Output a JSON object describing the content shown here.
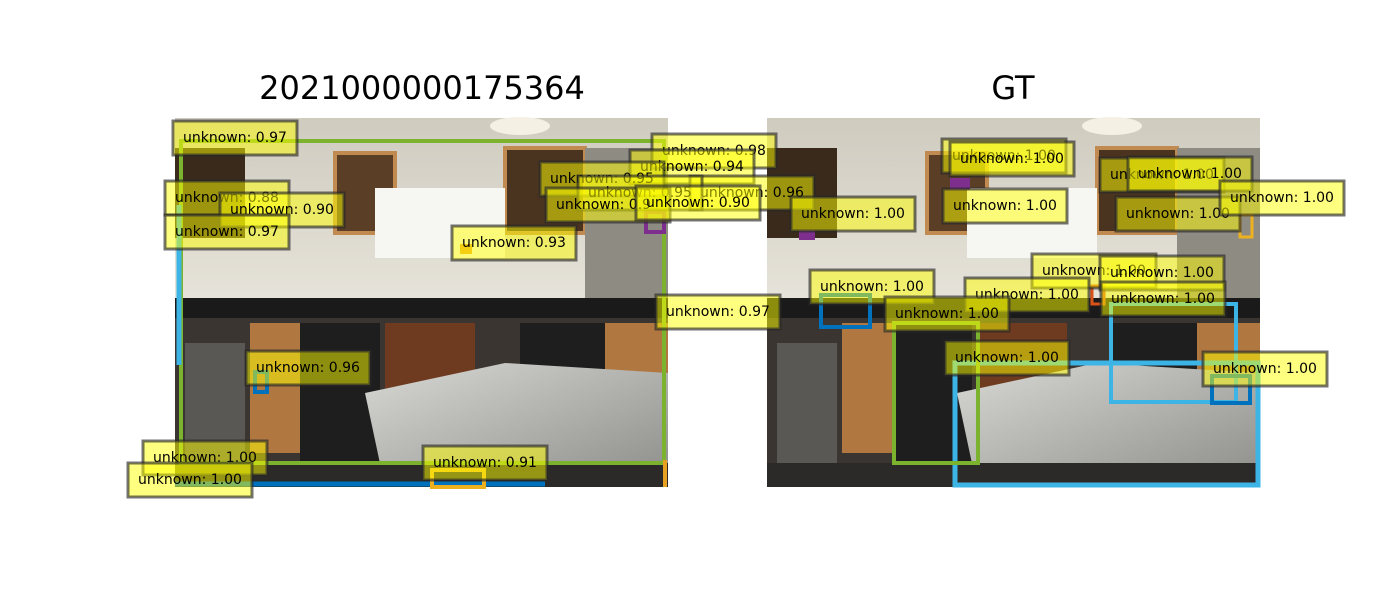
{
  "panels": [
    {
      "title": "2021000000175364",
      "labels": [
        "unknown: 0.97",
        "unknown: 0.98",
        "unknown: 0.94",
        "unknown: 0.95",
        "unknown: 0.96",
        "unknown: 0.95",
        "unknown: 0.9",
        "unknown: 0.90",
        "unknown: 0.88",
        "unknown: 0.90",
        "unknown: 0.97",
        "unknown: 0.93",
        "unknown: 0.97",
        "unknown: 0.96",
        "unknown: 1.00",
        "unknown: 1.00",
        "unknown: 0.91"
      ]
    },
    {
      "title": "GT",
      "labels": [
        "unknown: 1.00",
        "unknown: 1.00",
        "unknown: 1.00",
        "unknown: 1.00",
        "unknown: 1.00",
        "unknown: 1.00",
        "unknown: 1.00",
        "unknown: 1.00",
        "unknown: 1.00",
        "unknown: 1.00",
        "unknown: 1.00",
        "unknown: 1.00",
        "unknown: 1.00",
        "unknown: 1.00",
        "unknown: 1.00",
        "unknown: 1.00"
      ]
    }
  ]
}
